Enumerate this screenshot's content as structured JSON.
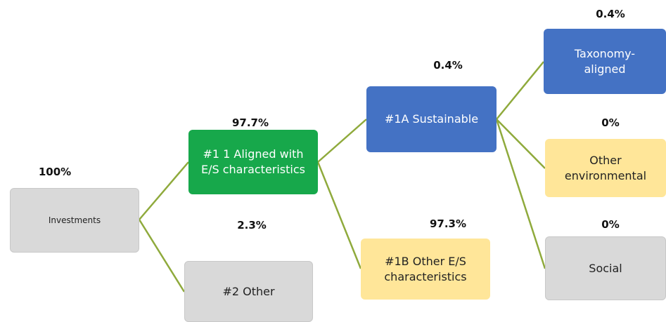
{
  "nodes": [
    {
      "label": "Investments",
      "share": "100%"
    },
    {
      "label": "#1 1 Aligned with E/S characteristics",
      "share": "97.7%"
    },
    {
      "label": "#2 Other",
      "share": "2.3%"
    },
    {
      "label": "#1A Sustainable",
      "share": "0.4%"
    },
    {
      "label": "#1B Other E/S characteristics",
      "share": "97.3%"
    },
    {
      "label": "Taxonomy-aligned",
      "share": "0.4%"
    },
    {
      "label": "Other environmental",
      "share": "0%"
    },
    {
      "label": "Social",
      "share": "0%"
    }
  ]
}
